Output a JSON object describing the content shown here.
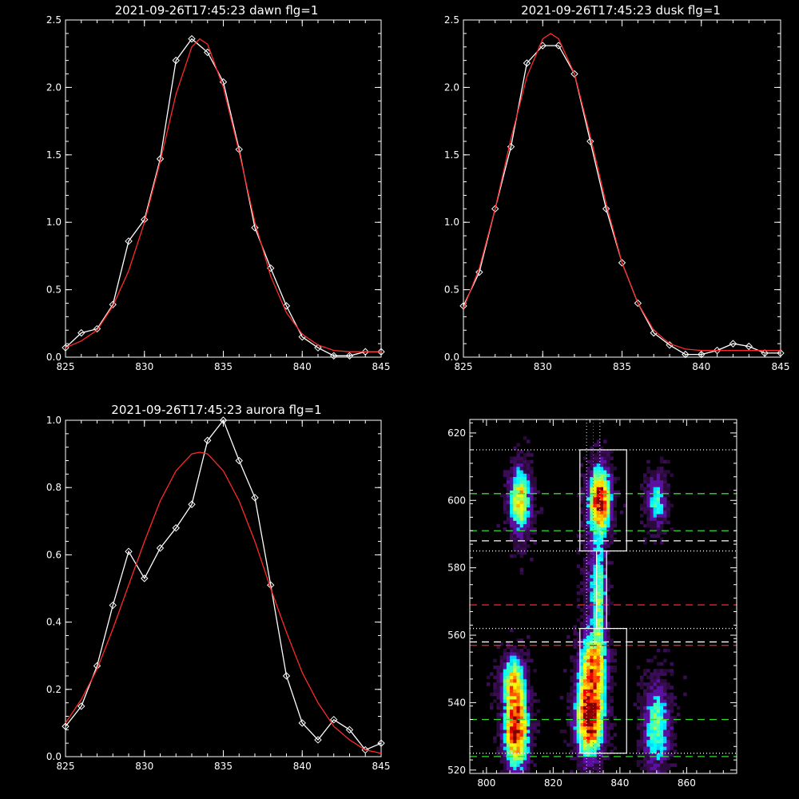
{
  "chart_data": [
    {
      "type": "line",
      "title": "2021-09-26T17:45:23 dawn flg=1",
      "xlim": [
        825,
        845
      ],
      "ylim": [
        0,
        2.5
      ],
      "xticks": [
        "825",
        "830",
        "835",
        "840",
        "845"
      ],
      "yticks": [
        "0.0",
        "0.5",
        "1.0",
        "1.5",
        "2.0",
        "2.5"
      ],
      "series": [
        {
          "color": "#ffffff",
          "markers": "diamond",
          "x": [
            825,
            826,
            827,
            828,
            829,
            830,
            831,
            832,
            833,
            834,
            835,
            836,
            837,
            838,
            839,
            840,
            841,
            842,
            843,
            844,
            845
          ],
          "y": [
            0.07,
            0.18,
            0.21,
            0.39,
            0.86,
            1.02,
            1.47,
            2.2,
            2.36,
            2.26,
            2.04,
            1.54,
            0.96,
            0.66,
            0.38,
            0.15,
            0.07,
            0.01,
            0.01,
            0.04,
            0.04
          ]
        },
        {
          "color": "#ff2a2a",
          "markers": "none",
          "x": [
            825,
            826,
            827,
            828,
            829,
            830,
            831,
            832,
            833,
            833.5,
            834,
            835,
            836,
            837,
            838,
            839,
            840,
            841,
            842,
            843,
            844,
            845
          ],
          "y": [
            0.07,
            0.12,
            0.2,
            0.38,
            0.64,
            1.0,
            1.45,
            1.95,
            2.3,
            2.36,
            2.32,
            2.0,
            1.52,
            1.0,
            0.6,
            0.33,
            0.17,
            0.09,
            0.05,
            0.04,
            0.04,
            0.04
          ]
        }
      ]
    },
    {
      "type": "line",
      "title": "2021-09-26T17:45:23 dusk flg=1",
      "xlim": [
        825,
        845
      ],
      "ylim": [
        0,
        2.5
      ],
      "xticks": [
        "825",
        "830",
        "835",
        "840",
        "845"
      ],
      "yticks": [
        "0.0",
        "0.5",
        "1.0",
        "1.5",
        "2.0",
        "2.5"
      ],
      "series": [
        {
          "color": "#ffffff",
          "markers": "diamond",
          "x": [
            825,
            826,
            827,
            828,
            829,
            830,
            831,
            832,
            833,
            834,
            835,
            836,
            837,
            838,
            839,
            840,
            841,
            842,
            843,
            844,
            845
          ],
          "y": [
            0.38,
            0.63,
            1.1,
            1.56,
            2.18,
            2.31,
            2.31,
            2.1,
            1.6,
            1.1,
            0.7,
            0.4,
            0.18,
            0.09,
            0.02,
            0.02,
            0.05,
            0.1,
            0.08,
            0.03,
            0.03
          ]
        },
        {
          "color": "#ff2a2a",
          "markers": "none",
          "x": [
            825,
            826,
            827,
            828,
            829,
            830,
            830.5,
            831,
            832,
            833,
            834,
            835,
            836,
            837,
            838,
            839,
            840,
            841,
            842,
            843,
            844,
            845
          ],
          "y": [
            0.36,
            0.66,
            1.1,
            1.62,
            2.08,
            2.36,
            2.4,
            2.36,
            2.1,
            1.64,
            1.14,
            0.7,
            0.4,
            0.2,
            0.1,
            0.06,
            0.05,
            0.05,
            0.05,
            0.05,
            0.05,
            0.05
          ]
        }
      ]
    },
    {
      "type": "line",
      "title": "2021-09-26T17:45:23 aurora flg=1",
      "xlim": [
        825,
        845
      ],
      "ylim": [
        0,
        1.0
      ],
      "xticks": [
        "825",
        "830",
        "835",
        "840",
        "845"
      ],
      "yticks": [
        "0.0",
        "0.2",
        "0.4",
        "0.6",
        "0.8",
        "1.0"
      ],
      "series": [
        {
          "color": "#ffffff",
          "markers": "diamond",
          "x": [
            825,
            826,
            827,
            828,
            829,
            830,
            831,
            832,
            833,
            834,
            835,
            836,
            837,
            838,
            839,
            840,
            841,
            842,
            843,
            844,
            845
          ],
          "y": [
            0.09,
            0.15,
            0.27,
            0.45,
            0.61,
            0.53,
            0.62,
            0.68,
            0.75,
            0.94,
            1.0,
            0.88,
            0.77,
            0.51,
            0.24,
            0.1,
            0.05,
            0.11,
            0.08,
            0.02,
            0.04
          ]
        },
        {
          "color": "#ff2a2a",
          "markers": "none",
          "x": [
            825,
            826,
            827,
            828,
            829,
            830,
            831,
            832,
            833,
            833.5,
            834,
            835,
            836,
            837,
            838,
            839,
            840,
            841,
            842,
            843,
            844,
            845
          ],
          "y": [
            0.1,
            0.17,
            0.26,
            0.38,
            0.51,
            0.64,
            0.76,
            0.85,
            0.9,
            0.905,
            0.9,
            0.85,
            0.76,
            0.64,
            0.5,
            0.37,
            0.25,
            0.16,
            0.09,
            0.05,
            0.02,
            0.01
          ]
        }
      ]
    },
    {
      "type": "heatmap",
      "title": "",
      "xlim": [
        795,
        875
      ],
      "ylim": [
        519,
        624
      ],
      "xticks": [
        "800",
        "820",
        "840",
        "860"
      ],
      "yticks": [
        "520",
        "540",
        "560",
        "580",
        "600",
        "620"
      ],
      "colormap": "jet",
      "blobs": [
        {
          "x": 831,
          "y": 536,
          "sx": 2.5,
          "sy": 7,
          "amp": 1.0
        },
        {
          "x": 832,
          "y": 551,
          "sx": 2.5,
          "sy": 6,
          "amp": 0.55
        },
        {
          "x": 809,
          "y": 532,
          "sx": 2.2,
          "sy": 7,
          "amp": 0.85
        },
        {
          "x": 808,
          "y": 546,
          "sx": 2.2,
          "sy": 5,
          "amp": 0.5
        },
        {
          "x": 834,
          "y": 600,
          "sx": 2.0,
          "sy": 6,
          "amp": 0.85
        },
        {
          "x": 810,
          "y": 600,
          "sx": 2.0,
          "sy": 6,
          "amp": 0.55
        },
        {
          "x": 834,
          "y": 570,
          "sx": 1.2,
          "sy": 10,
          "amp": 0.3
        },
        {
          "x": 851,
          "y": 533,
          "sx": 2.5,
          "sy": 8,
          "amp": 0.35
        },
        {
          "x": 851,
          "y": 600,
          "sx": 2.0,
          "sy": 5,
          "amp": 0.3
        },
        {
          "x": 832,
          "y": 575,
          "sx": 2.0,
          "sy": 14,
          "amp": 0.15
        }
      ],
      "boxes": [
        {
          "x0": 828,
          "x1": 842,
          "y0": 585,
          "y1": 615
        },
        {
          "x0": 828,
          "x1": 842,
          "y0": 525,
          "y1": 562
        },
        {
          "x0": 833,
          "x1": 836,
          "y0": 562,
          "y1": 585
        }
      ],
      "hlines": [
        {
          "y": 615,
          "color": "#ffffff",
          "style": "dotted"
        },
        {
          "y": 585,
          "color": "#ffffff",
          "style": "dotted"
        },
        {
          "y": 562,
          "color": "#ffffff",
          "style": "dotted"
        },
        {
          "y": 525,
          "color": "#ffffff",
          "style": "dotted"
        },
        {
          "y": 602,
          "color": "#32dc32",
          "style": "dashed"
        },
        {
          "y": 591,
          "color": "#32dc32",
          "style": "dashed"
        },
        {
          "y": 535,
          "color": "#32dc32",
          "style": "dashed"
        },
        {
          "y": 524,
          "color": "#32dc32",
          "style": "dashed"
        },
        {
          "y": 588,
          "color": "#ffffff",
          "style": "dashed"
        },
        {
          "y": 558,
          "color": "#ffffff",
          "style": "dashed"
        },
        {
          "y": 569,
          "color": "#e52222",
          "style": "dashed"
        },
        {
          "y": 557,
          "color": "#e52222",
          "style": "dashed"
        }
      ],
      "vlines": [
        {
          "x": 830,
          "color": "#ffffff",
          "style": "dotted"
        },
        {
          "x": 832,
          "color": "#ff3030",
          "style": "dotted"
        },
        {
          "x": 834,
          "color": "#ffffff",
          "style": "dotted"
        }
      ]
    }
  ]
}
